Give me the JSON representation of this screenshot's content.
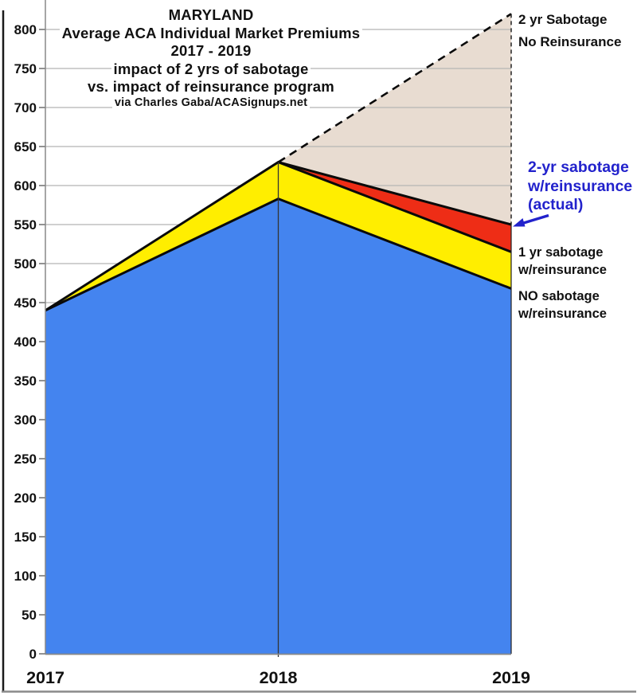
{
  "title": {
    "lines": [
      "MARYLAND",
      "Average ACA Individual Market Premiums",
      "2017 - 2019",
      "impact of 2 yrs of sabotage",
      "vs. impact of reinsurance program",
      "via Charles Gaba/ACASignups.net"
    ]
  },
  "annotations": {
    "top_right": [
      "2 yr Sabotage",
      "No Reinsurance"
    ],
    "actual": {
      "lines": [
        "2-yr sabotage",
        "w/reinsurance",
        "(actual)"
      ],
      "color": "#2222cc"
    },
    "one_yr": [
      "1 yr sabotage",
      "w/reinsurance"
    ],
    "no_sabotage": [
      "NO sabotage",
      "w/reinsurance"
    ]
  },
  "chart_data": {
    "type": "area",
    "title": "MARYLAND Average ACA Individual Market Premiums 2017 - 2019, impact of 2 yrs of sabotage vs. impact of reinsurance program",
    "source": "via Charles Gaba/ACASignups.net",
    "categories": [
      "2017",
      "2018",
      "2019"
    ],
    "series": [
      {
        "key": "no_reinsurance",
        "name": "2 yr Sabotage No Reinsurance",
        "values": [
          440,
          630,
          820
        ],
        "fill": "#e8dcd1",
        "top_line": "dashed"
      },
      {
        "key": "actual",
        "name": "2-yr sabotage w/reinsurance (actual)",
        "values": [
          440,
          630,
          550
        ],
        "fill": "#ee2d16",
        "top_line": "solid"
      },
      {
        "key": "one_yr_sabotage",
        "name": "1 yr sabotage w/reinsurance",
        "values": [
          440,
          630,
          515
        ],
        "fill": "#ffee00",
        "top_line": "solid"
      },
      {
        "key": "no_sabotage",
        "name": "NO sabotage w/reinsurance",
        "values": [
          440,
          583,
          468
        ],
        "fill": "#4484ef",
        "top_line": "solid"
      }
    ],
    "xlabel": "",
    "ylabel": "",
    "ylim": [
      0,
      820
    ],
    "ytick_step": 50,
    "yticks": [
      0,
      50,
      100,
      150,
      200,
      250,
      300,
      350,
      400,
      450,
      500,
      550,
      600,
      650,
      700,
      750,
      800
    ],
    "grid": true,
    "legend_position": "right-annotations"
  },
  "colors": {
    "background": "#ffffff",
    "grid": "#b5b5b5",
    "axis": "#888888",
    "tick": "#777777",
    "tick_label": "#111111",
    "line_black": "#0a0a0a",
    "annotation_blue": "#2222cc",
    "frame_left": "#1a1a1a",
    "frame_bottom": "#8a8a8a",
    "divider_2018": "#333333",
    "right_edge": "#222222"
  }
}
